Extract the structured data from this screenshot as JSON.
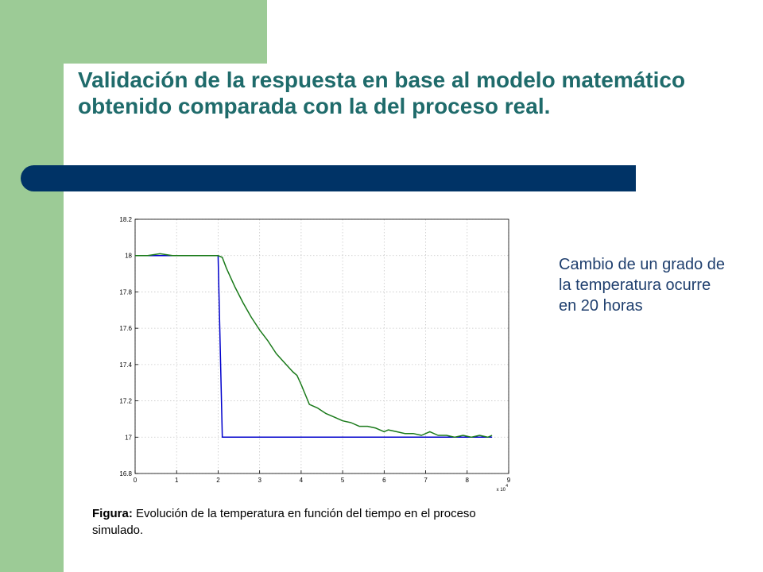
{
  "slide": {
    "title": "Validación de la respuesta en base al modelo matemático obtenido comparada con la del proceso real.",
    "side_note": "Cambio de un grado de la temperatura ocurre en 20 horas",
    "caption_label": "Figura:",
    "caption_text": " Evolución de la temperatura en función del tiempo en el proceso simulado.",
    "colors": {
      "accent_green": "#9ccb96",
      "bar_navy": "#003366",
      "title": "#1f6b6b",
      "note": "#1f3f6e"
    }
  },
  "chart_data": {
    "type": "line",
    "title": "",
    "xlabel": "",
    "ylabel": "",
    "x_multiplier_label": "x 10",
    "x_multiplier_exp": "4",
    "xlim": [
      0,
      9
    ],
    "ylim": [
      16.8,
      18.2
    ],
    "x_ticks": [
      0,
      1,
      2,
      3,
      4,
      5,
      6,
      7,
      8,
      9
    ],
    "y_ticks": [
      16.8,
      17,
      17.2,
      17.4,
      17.6,
      17.8,
      18,
      18.2
    ],
    "x_tick_labels": [
      "0",
      "1",
      "2",
      "3",
      "4",
      "5",
      "6",
      "7",
      "8",
      "9"
    ],
    "y_tick_labels": [
      "16.8",
      "17",
      "17.2",
      "17.4",
      "17.6",
      "17.8",
      "18",
      "18.2"
    ],
    "grid": true,
    "series": [
      {
        "color": "#0000cc",
        "x": [
          0,
          0.5,
          1.0,
          1.5,
          1.9,
          2.0,
          2.1,
          2.5,
          3,
          4,
          5,
          6,
          7,
          8,
          8.6
        ],
        "y": [
          18.0,
          18.0,
          18.0,
          18.0,
          18.0,
          18.0,
          17.0,
          17.0,
          17.0,
          17.0,
          17.0,
          17.0,
          17.0,
          17.0,
          17.0
        ]
      },
      {
        "color": "#1a7a1a",
        "x": [
          0,
          0.3,
          0.6,
          0.9,
          1.2,
          1.5,
          1.8,
          2.0,
          2.1,
          2.2,
          2.4,
          2.6,
          2.8,
          3.0,
          3.2,
          3.4,
          3.6,
          3.8,
          3.9,
          4.0,
          4.2,
          4.4,
          4.6,
          4.8,
          5.0,
          5.2,
          5.4,
          5.6,
          5.8,
          6.0,
          6.1,
          6.3,
          6.5,
          6.7,
          6.9,
          7.1,
          7.3,
          7.5,
          7.7,
          7.9,
          8.1,
          8.3,
          8.5,
          8.6
        ],
        "y": [
          18.0,
          18.0,
          18.01,
          18.0,
          18.0,
          18.0,
          18.0,
          18.0,
          17.99,
          17.93,
          17.83,
          17.74,
          17.66,
          17.59,
          17.53,
          17.46,
          17.41,
          17.36,
          17.34,
          17.29,
          17.18,
          17.16,
          17.13,
          17.11,
          17.09,
          17.08,
          17.06,
          17.06,
          17.05,
          17.03,
          17.04,
          17.03,
          17.02,
          17.02,
          17.01,
          17.03,
          17.01,
          17.01,
          17.0,
          17.01,
          17.0,
          17.01,
          17.0,
          17.01
        ]
      }
    ]
  }
}
